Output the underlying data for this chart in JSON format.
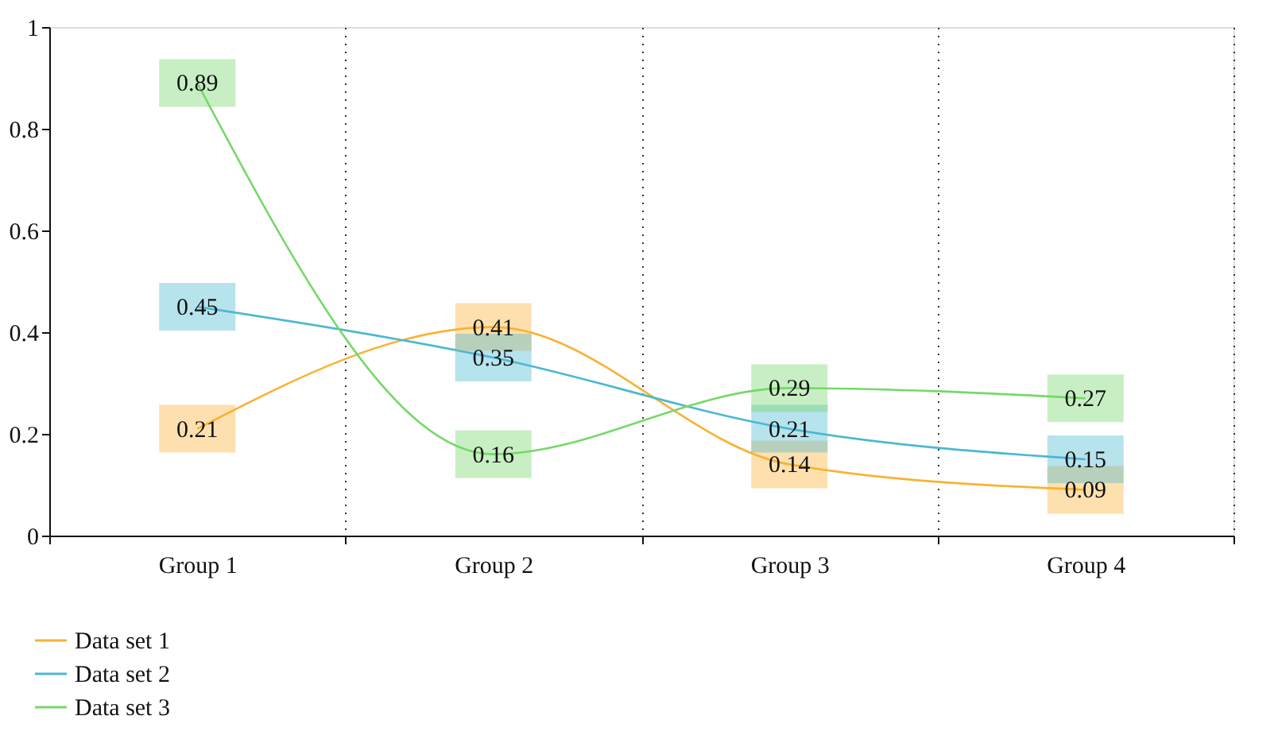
{
  "chart_data": {
    "type": "line",
    "categories": [
      "Group 1",
      "Group 2",
      "Group 3",
      "Group 4"
    ],
    "series": [
      {
        "name": "Data set 1",
        "color": "#f9b234",
        "values": [
          0.21,
          0.41,
          0.14,
          0.09
        ]
      },
      {
        "name": "Data set 2",
        "color": "#4bb8d2",
        "values": [
          0.45,
          0.35,
          0.21,
          0.15
        ]
      },
      {
        "name": "Data set 3",
        "color": "#76d86a",
        "values": [
          0.89,
          0.16,
          0.29,
          0.27
        ]
      }
    ],
    "ylim": [
      0,
      1
    ],
    "yticks": [
      0,
      0.2,
      0.4,
      0.6,
      0.8,
      1
    ],
    "grid": "x",
    "legend": "bottom left",
    "marker": "none",
    "line_style": "solid",
    "data_labels": true
  }
}
